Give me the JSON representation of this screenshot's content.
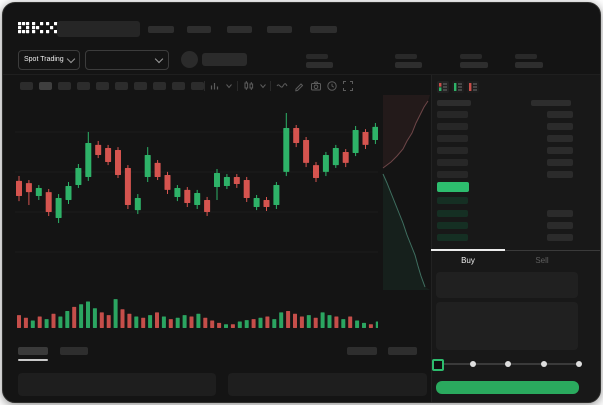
{
  "app": {
    "logo_text": "OKX"
  },
  "header": {
    "nav_item_count": 5,
    "search": {
      "value": ""
    }
  },
  "subheader": {
    "market_selector": {
      "label": "Spot Trading"
    },
    "pair_selector": {
      "value": ""
    },
    "stat_block_count": 4
  },
  "chart_toolbar": {
    "timeframe_count": 10,
    "active_timeframe_index": 1,
    "tool_icons": [
      "indicators",
      "indicators-chevron",
      "candle-style",
      "candle-style-chevron",
      "line-type",
      "draw",
      "camera",
      "history",
      "fullscreen"
    ]
  },
  "chart_data": {
    "type": "candlestick",
    "title": "",
    "ylim": [
      0,
      100
    ],
    "grid": true,
    "candles": {
      "o": [
        60.6,
        59.4,
        52.2,
        54.4,
        40.0,
        50.0,
        58.3,
        62.8,
        80.6,
        78.9,
        77.8,
        67.8,
        44.4,
        62.8,
        70.6,
        63.9,
        51.7,
        55.6,
        47.2,
        50.0,
        57.2,
        57.8,
        62.8,
        61.1,
        46.1,
        50.0,
        47.2,
        65.6,
        90.0,
        83.3,
        69.4,
        65.6,
        69.4,
        76.7,
        76.1,
        87.8,
        83.3
      ],
      "h": [
        63.3,
        61.1,
        58.3,
        56.1,
        53.3,
        60.0,
        70.0,
        87.8,
        82.8,
        80.6,
        79.4,
        69.4,
        53.3,
        79.4,
        72.2,
        65.6,
        58.3,
        57.2,
        55.6,
        51.7,
        67.2,
        64.4,
        64.4,
        62.8,
        52.8,
        51.7,
        60.0,
        98.3,
        91.7,
        85.0,
        71.1,
        76.7,
        80.6,
        78.3,
        91.1,
        89.4,
        92.8
      ],
      "l": [
        49.4,
        47.2,
        50.0,
        41.1,
        37.2,
        47.8,
        56.7,
        60.6,
        73.3,
        69.4,
        62.2,
        45.0,
        42.2,
        60.0,
        61.1,
        53.3,
        49.4,
        46.1,
        45.0,
        41.1,
        50.0,
        56.1,
        56.7,
        48.9,
        44.4,
        43.9,
        45.0,
        63.3,
        79.4,
        68.3,
        60.0,
        63.3,
        67.8,
        68.3,
        74.4,
        78.3,
        81.1
      ],
      "c": [
        52.2,
        54.4,
        56.7,
        43.3,
        51.1,
        57.8,
        67.8,
        81.7,
        75.0,
        71.1,
        63.9,
        47.2,
        51.1,
        75.0,
        62.8,
        55.6,
        56.7,
        48.3,
        53.9,
        43.3,
        65.0,
        62.8,
        58.9,
        51.1,
        51.1,
        46.1,
        58.3,
        90.0,
        81.7,
        70.6,
        62.2,
        75.0,
        78.9,
        70.6,
        88.9,
        80.6,
        90.6
      ]
    },
    "volume": {
      "values": [
        38,
        30,
        22,
        34,
        26,
        42,
        34,
        50,
        62,
        70,
        78,
        58,
        46,
        38,
        85,
        55,
        42,
        34,
        30,
        38,
        46,
        34,
        26,
        30,
        38,
        34,
        42,
        30,
        22,
        15,
        11,
        11,
        19,
        23,
        26,
        30,
        34,
        26,
        46,
        50,
        42,
        34,
        38,
        30,
        46,
        38,
        34,
        26,
        34,
        22,
        15,
        11,
        19
      ],
      "direction": [
        "d",
        "d",
        "u",
        "d",
        "u",
        "d",
        "u",
        "u",
        "d",
        "u",
        "u",
        "u",
        "d",
        "d",
        "u",
        "d",
        "d",
        "u",
        "d",
        "u",
        "d",
        "u",
        "d",
        "u",
        "u",
        "d",
        "u",
        "d",
        "d",
        "d",
        "u",
        "d",
        "u",
        "u",
        "d",
        "u",
        "d",
        "u",
        "u",
        "d",
        "d",
        "d",
        "u",
        "d",
        "u",
        "u",
        "d",
        "u",
        "d",
        "u",
        "u",
        "d",
        "u"
      ]
    },
    "depth": {
      "asks": [
        [
          50,
          6
        ],
        [
          46,
          12
        ],
        [
          42,
          20
        ],
        [
          38,
          28
        ],
        [
          34,
          38
        ],
        [
          29,
          46
        ],
        [
          25,
          54
        ],
        [
          19,
          61
        ],
        [
          13,
          67
        ],
        [
          5,
          73
        ]
      ],
      "bids": [
        [
          5,
          79
        ],
        [
          9,
          88
        ],
        [
          13,
          98
        ],
        [
          17,
          108
        ],
        [
          21,
          118
        ],
        [
          25,
          128
        ],
        [
          29,
          140
        ],
        [
          33,
          150
        ],
        [
          37,
          160
        ],
        [
          40,
          171
        ],
        [
          43,
          181
        ],
        [
          47,
          192
        ]
      ]
    }
  },
  "order_book": {
    "view_modes": [
      "book-combined",
      "book-bids-only",
      "book-asks-only"
    ],
    "ask_row_count": 6,
    "bid_row_count": 4,
    "last_price_direction": "up"
  },
  "trade_panel": {
    "tabs": [
      {
        "label": "Buy",
        "active": true
      },
      {
        "label": "Sell",
        "active": false
      }
    ],
    "slider": {
      "stop_count": 5,
      "selected_index": 0
    },
    "submit_button": {
      "label": ""
    }
  },
  "bottom_panel": {
    "left_tab_count": 2,
    "right_tab_count": 2,
    "active_tab_index": 0,
    "box_count": 2
  },
  "colors": {
    "up": "#2eb268",
    "down": "#d5544f",
    "accent_green": "#2dbd6e",
    "buy_button_green": "#2aaa5e",
    "window_bg": "#141414",
    "panel_bg": "#181818"
  }
}
